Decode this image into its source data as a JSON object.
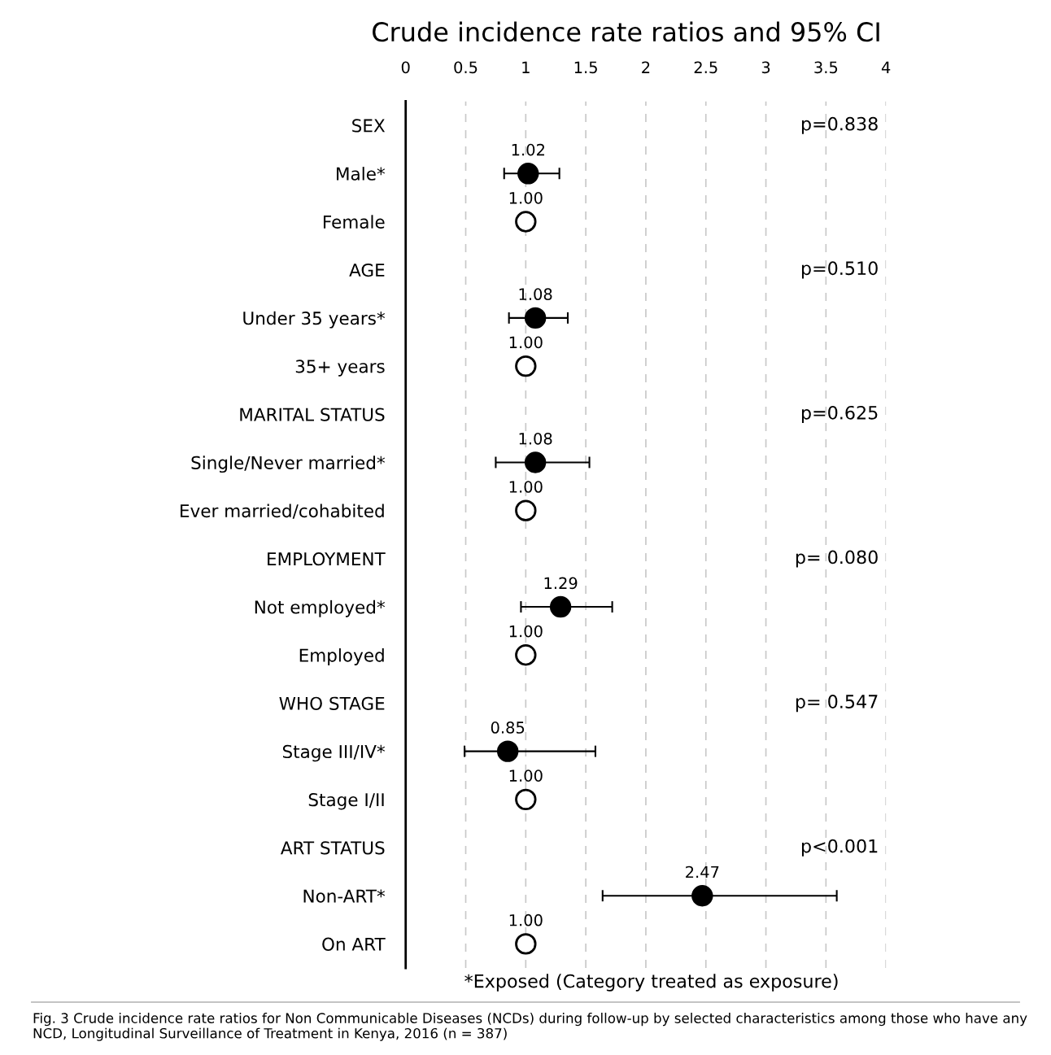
{
  "chart_data": {
    "type": "scatter",
    "title": "Crude incidence rate ratios and 95% CI",
    "categories": [
      "SEX",
      "Male*",
      "Female",
      "AGE",
      "Under 35 years*",
      "35+ years",
      "MARITAL STATUS",
      "Single/Never married*",
      "Ever married/cohabited",
      "EMPLOYMENT",
      "Not employed*",
      "Employed",
      "WHO STAGE",
      "Stage III/IV*",
      "Stage I/II",
      "ART STATUS",
      "Non-ART*",
      "On ART"
    ],
    "orientation": "horizontal",
    "series": [
      {
        "color": "#000000",
        "values": [
          null,
          1.02,
          null,
          null,
          1.08,
          null,
          null,
          1.08,
          null,
          null,
          1.29,
          null,
          null,
          0.85,
          null,
          null,
          2.47,
          null
        ],
        "errors": [
          null,
          [
            0.82,
            1.28
          ],
          null,
          null,
          [
            0.86,
            1.35
          ],
          null,
          null,
          [
            0.75,
            1.53
          ],
          null,
          null,
          [
            0.96,
            1.72
          ],
          null,
          null,
          [
            0.49,
            1.58
          ],
          null,
          null,
          [
            1.64,
            3.59
          ],
          null
        ],
        "value_labels": [
          null,
          "1.02",
          null,
          null,
          "1.08",
          null,
          null,
          "1.08",
          null,
          null,
          "1.29",
          null,
          null,
          "0.85",
          null,
          null,
          "2.47",
          null
        ]
      },
      {
        "color": "#ffffff",
        "values": [
          null,
          null,
          1.0,
          null,
          null,
          1.0,
          null,
          null,
          1.0,
          null,
          null,
          1.0,
          null,
          null,
          1.0,
          null,
          null,
          1.0
        ],
        "value_labels": [
          null,
          null,
          "1.00",
          null,
          null,
          "1.00",
          null,
          null,
          "1.00",
          null,
          null,
          "1.00",
          null,
          null,
          "1.00",
          null,
          null,
          "1.00"
        ]
      }
    ],
    "xlim": [
      0,
      4
    ],
    "xticks": [
      0,
      0.5,
      1,
      1.5,
      2,
      2.5,
      3,
      3.5,
      4
    ],
    "grid": "x",
    "marker": "circle",
    "legend": false,
    "annotations": [
      "p=0.838",
      "p=0.510",
      "p=0.625",
      "p= 0.080",
      "p= 0.547",
      "p<0.001",
      "*Exposed (Category treated as exposure)",
      "Fig. 3 Crude incidence rate ratios for Non Communicable Diseases (NCDs) during follow-up by selected characteristics among those who have any NCD, Longitudinal Surveillance of Treatment in Kenya, 2016 (n = 387)"
    ]
  }
}
